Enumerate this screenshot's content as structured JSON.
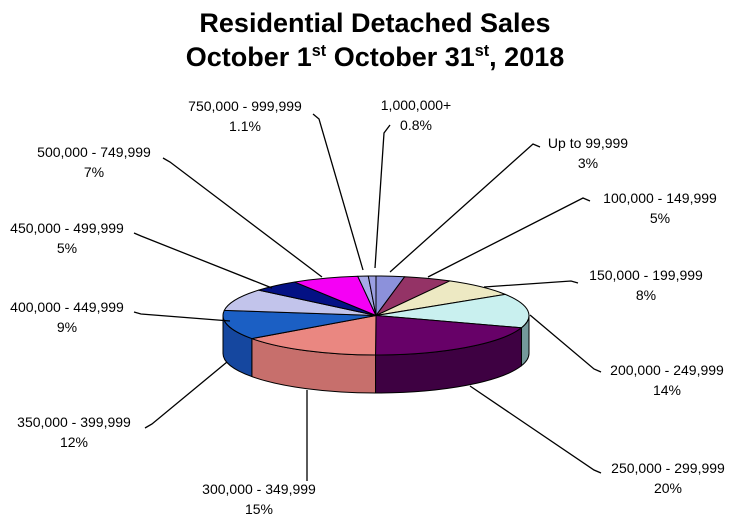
{
  "title": {
    "line1": "Residential Detached Sales",
    "line2_parts": {
      "p1": "October 1",
      "sup1": "st",
      "p2": " October 31",
      "sup2": "st",
      "p3": ", 2018"
    }
  },
  "chart_data": {
    "type": "pie",
    "is_3d": true,
    "start_angle_deg": 0,
    "direction": "clockwise",
    "legend_position": "none",
    "title": "Residential Detached Sales October 1st October 31st, 2018",
    "slices": [
      {
        "label": "Up to 99,999",
        "value": 3,
        "percent_label": "3%",
        "color": "#8C91DB"
      },
      {
        "label": "100,000 - 149,999",
        "value": 5,
        "percent_label": "5%",
        "color": "#943366"
      },
      {
        "label": "150,000 - 199,999",
        "value": 8,
        "percent_label": "8%",
        "color": "#EDE9C3"
      },
      {
        "label": "200,000 - 249,999",
        "value": 14,
        "percent_label": "14%",
        "color": "#C9F0EF",
        "side_color": "#74999A"
      },
      {
        "label": "250,000 - 299,999",
        "value": 20,
        "percent_label": "20%",
        "color": "#670168",
        "side_color": "#3E0142"
      },
      {
        "label": "300,000 - 349,999",
        "value": 15,
        "percent_label": "15%",
        "color": "#EA8781",
        "side_color": "#C76F6C"
      },
      {
        "label": "350,000 - 399,999",
        "value": 12,
        "percent_label": "12%",
        "color": "#1B5FC4",
        "side_color": "#15479F"
      },
      {
        "label": "400,000 - 449,999",
        "value": 9,
        "percent_label": "9%",
        "color": "#C2C4EB"
      },
      {
        "label": "450,000 - 499,999",
        "value": 5,
        "percent_label": "5%",
        "color": "#041184"
      },
      {
        "label": "500,000 - 749,999",
        "value": 7,
        "percent_label": "7%",
        "color": "#F500F5"
      },
      {
        "label": "750,000 - 999,999",
        "value": 1.1,
        "percent_label": "1.1%",
        "color": "#A7AAE8"
      },
      {
        "label": "1,000,000+",
        "value": 0.8,
        "percent_label": "0.8%",
        "color": "#9B9FE2"
      }
    ]
  }
}
